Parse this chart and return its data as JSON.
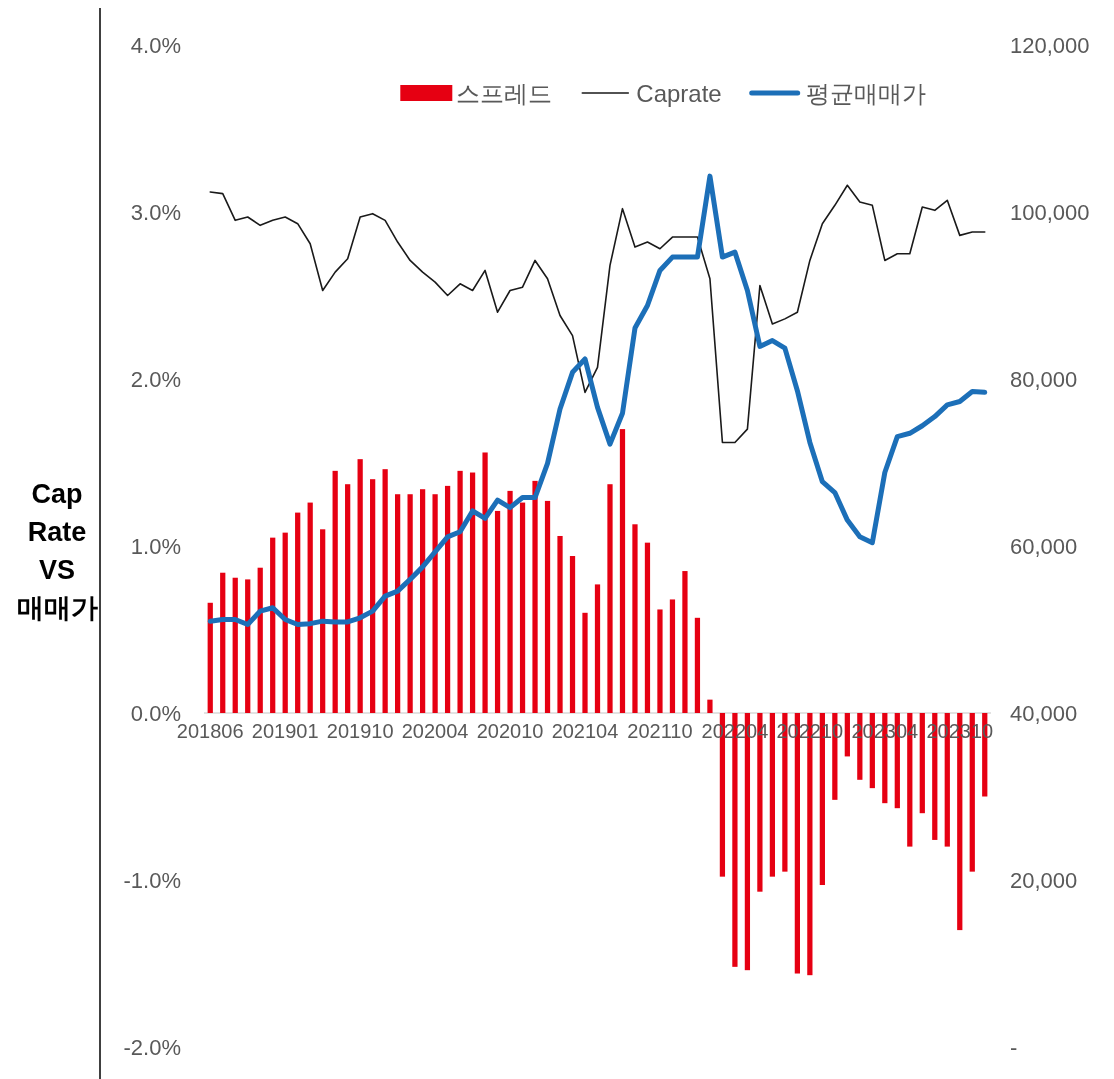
{
  "chart_data": {
    "type": "bar",
    "title": "Cap Rate VS 매매가",
    "categories": [
      "201806",
      null,
      null,
      null,
      null,
      null,
      "201901",
      null,
      null,
      null,
      null,
      null,
      "201910",
      null,
      null,
      null,
      null,
      null,
      "202004",
      null,
      null,
      null,
      null,
      null,
      "202010",
      null,
      null,
      null,
      null,
      null,
      "202104",
      null,
      null,
      null,
      null,
      null,
      "202110",
      null,
      null,
      null,
      null,
      null,
      "202204",
      null,
      null,
      null,
      null,
      null,
      "202210",
      null,
      null,
      null,
      null,
      null,
      "202304",
      null,
      null,
      null,
      null,
      null,
      "202310",
      null,
      null
    ],
    "series": [
      {
        "name": "스프레드",
        "color": "#e60012",
        "values": [
          0.66,
          0.84,
          0.81,
          0.8,
          0.87,
          1.05,
          1.08,
          1.2,
          1.26,
          1.1,
          1.45,
          1.37,
          1.52,
          1.4,
          1.46,
          1.31,
          1.31,
          1.34,
          1.31,
          1.36,
          1.45,
          1.44,
          1.56,
          1.21,
          1.33,
          1.26,
          1.39,
          1.27,
          1.06,
          0.94,
          0.6,
          0.77,
          1.37,
          1.7,
          1.13,
          1.02,
          0.62,
          0.68,
          0.85,
          0.57,
          0.08,
          -0.98,
          -1.52,
          -1.54,
          -1.07,
          -0.98,
          -0.95,
          -1.56,
          -1.57,
          -1.03,
          -0.52,
          -0.26,
          -0.4,
          -0.45,
          -0.54,
          -0.57,
          -0.8,
          -0.6,
          -0.76,
          -0.8,
          -1.3,
          -0.95,
          -0.5
        ]
      },
      {
        "name": "Caprate",
        "type": "line",
        "color": "#1a1a1a",
        "values": [
          3.12,
          3.11,
          2.95,
          2.97,
          2.92,
          2.95,
          2.97,
          2.93,
          2.81,
          2.53,
          2.64,
          2.72,
          2.97,
          2.99,
          2.95,
          2.82,
          2.71,
          2.64,
          2.58,
          2.5,
          2.57,
          2.53,
          2.65,
          2.4,
          2.53,
          2.55,
          2.71,
          2.6,
          2.38,
          2.26,
          1.92,
          2.07,
          2.68,
          3.02,
          2.79,
          2.82,
          2.78,
          2.85,
          2.85,
          2.85,
          2.6,
          1.62,
          1.62,
          1.7,
          2.56,
          2.33,
          2.36,
          2.4,
          2.71,
          2.93,
          3.04,
          3.16,
          3.06,
          3.04,
          2.71,
          2.75,
          2.75,
          3.03,
          3.01,
          3.07,
          2.86,
          2.88,
          2.88
        ]
      },
      {
        "name": "평균매매가",
        "type": "line",
        "axis": "y2",
        "color": "#1c6fb8",
        "values": [
          51000,
          51200,
          51200,
          50600,
          52200,
          52600,
          51200,
          50600,
          50700,
          51000,
          50900,
          50900,
          51400,
          52200,
          54000,
          54600,
          56000,
          57500,
          59300,
          61100,
          61700,
          64200,
          63300,
          65500,
          64600,
          65800,
          65800,
          69900,
          76400,
          80800,
          82400,
          76600,
          72200,
          75900,
          86100,
          88800,
          93000,
          94600,
          94600,
          94600,
          104300,
          94600,
          95200,
          90600,
          83900,
          84600,
          83700,
          78600,
          72400,
          67700,
          66400,
          63100,
          61100,
          60400,
          68800,
          73100,
          73500,
          74400,
          75500,
          76900,
          77300,
          78500,
          78400
        ]
      }
    ],
    "ylim": [
      -2,
      4
    ],
    "yticks": [
      {
        "value": -2,
        "label": "-2.0%"
      },
      {
        "value": -1,
        "label": "-1.0%"
      },
      {
        "value": 0,
        "label": "0.0%"
      },
      {
        "value": 1,
        "label": "1.0%"
      },
      {
        "value": 2,
        "label": "2.0%"
      },
      {
        "value": 3,
        "label": "3.0%"
      },
      {
        "value": 4,
        "label": "4.0%"
      }
    ],
    "y2lim": [
      0,
      120000
    ],
    "y2ticks": [
      {
        "value": 0,
        "label": "-"
      },
      {
        "value": 20000,
        "label": "20,000"
      },
      {
        "value": 40000,
        "label": "40,000"
      },
      {
        "value": 60000,
        "label": "60,000"
      },
      {
        "value": 80000,
        "label": "80,000"
      },
      {
        "value": 100000,
        "label": "100,000"
      },
      {
        "value": 120000,
        "label": "120,000"
      }
    ],
    "legend": "top"
  }
}
